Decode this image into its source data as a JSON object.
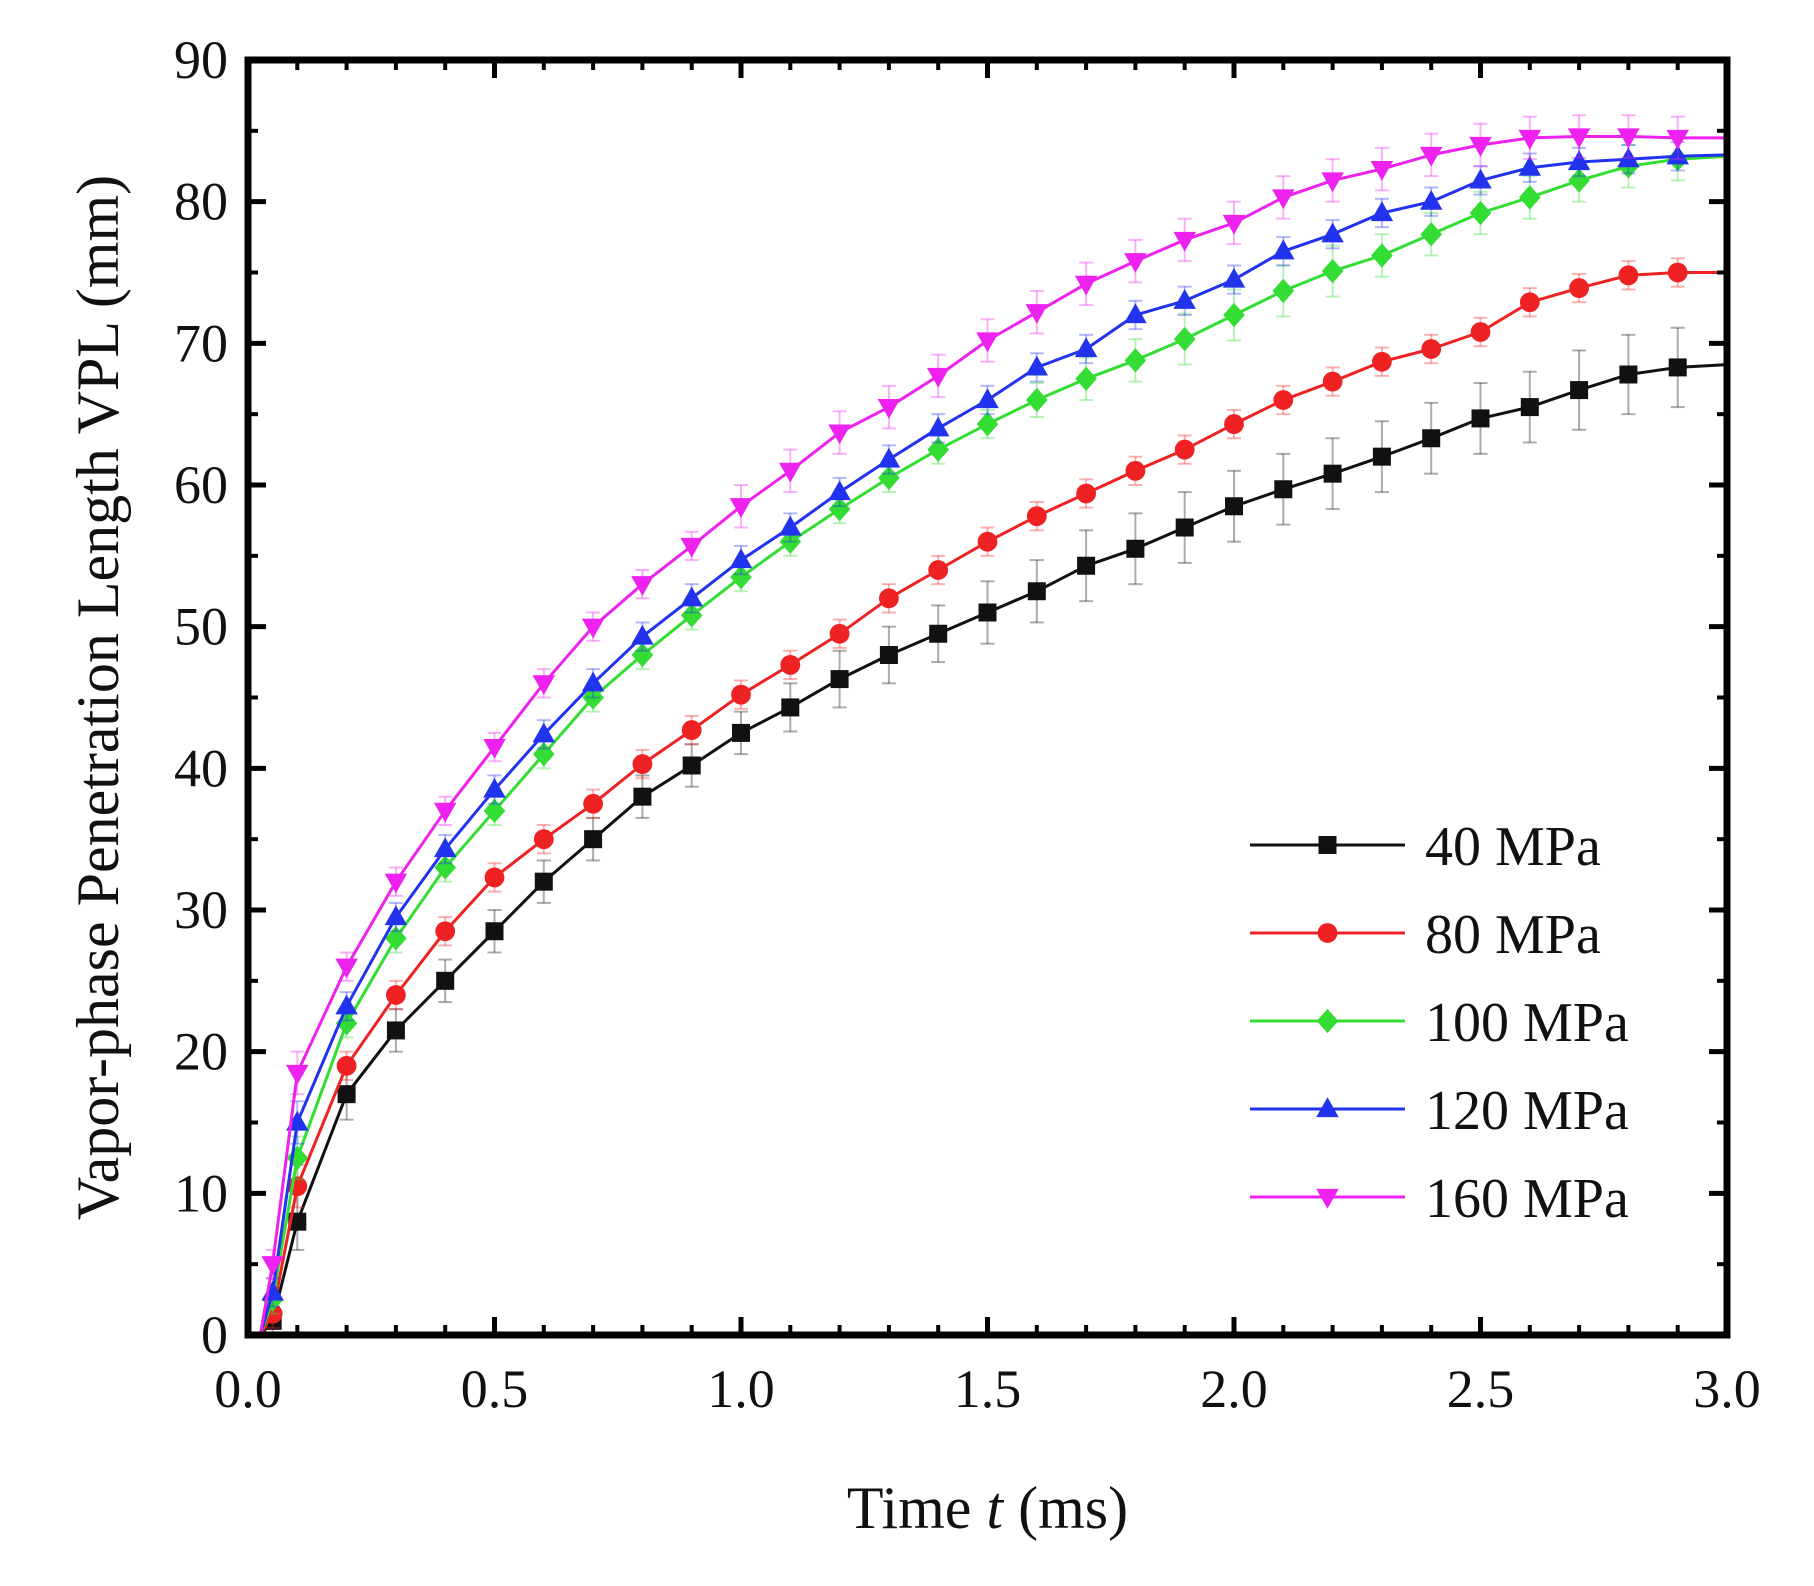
{
  "chart_data": {
    "type": "line",
    "title": "",
    "xlabel_parts": [
      "Time ",
      "t",
      " (ms)"
    ],
    "ylabel": "Vapor-phase Penetration Length VPL (mm)",
    "xlim": [
      0.0,
      3.0
    ],
    "ylim": [
      0,
      90
    ],
    "xticks": [
      0.0,
      0.5,
      1.0,
      1.5,
      2.0,
      2.5,
      3.0
    ],
    "xtick_labels": [
      "0.0",
      "0.5",
      "1.0",
      "1.5",
      "2.0",
      "2.5",
      "3.0"
    ],
    "yticks": [
      0,
      10,
      20,
      30,
      40,
      50,
      60,
      70,
      80,
      90
    ],
    "ytick_labels": [
      "0",
      "10",
      "20",
      "30",
      "40",
      "50",
      "60",
      "70",
      "80",
      "90"
    ],
    "grid": false,
    "legend_position": "lower-right",
    "x": [
      0.025,
      0.05,
      0.1,
      0.2,
      0.3,
      0.4,
      0.5,
      0.6,
      0.7,
      0.8,
      0.9,
      1.0,
      1.1,
      1.2,
      1.3,
      1.4,
      1.5,
      1.6,
      1.7,
      1.8,
      1.9,
      2.0,
      2.1,
      2.2,
      2.3,
      2.4,
      2.5,
      2.6,
      2.7,
      2.8,
      2.9,
      3.0
    ],
    "series": [
      {
        "name": "40 MPa",
        "color": "#111111",
        "marker": "square",
        "values": [
          0,
          1,
          8,
          17,
          21.5,
          25,
          28.5,
          32,
          35,
          38,
          40.2,
          42.5,
          44.3,
          46.3,
          48,
          49.5,
          51,
          52.5,
          54.3,
          55.5,
          57,
          58.5,
          59.7,
          60.8,
          62,
          63.3,
          64.7,
          65.5,
          66.7,
          67.8,
          68.3,
          68.5
        ],
        "errors": [
          0,
          1,
          2,
          1.8,
          1.5,
          1.5,
          1.5,
          1.5,
          1.5,
          1.5,
          1.5,
          1.5,
          1.7,
          2,
          2,
          2,
          2.2,
          2.2,
          2.5,
          2.5,
          2.5,
          2.5,
          2.5,
          2.5,
          2.5,
          2.5,
          2.5,
          2.5,
          2.8,
          2.8,
          2.8,
          0
        ]
      },
      {
        "name": "80 MPa",
        "color": "#ee2222",
        "marker": "circle",
        "values": [
          0,
          1.5,
          10.5,
          19,
          24,
          28.5,
          32.3,
          35,
          37.5,
          40.3,
          42.7,
          45.2,
          47.3,
          49.5,
          52,
          54,
          56,
          57.8,
          59.4,
          61,
          62.5,
          64.3,
          66,
          67.3,
          68.7,
          69.6,
          70.8,
          72.9,
          73.9,
          74.8,
          75,
          75
        ],
        "errors": [
          0,
          1,
          1.5,
          1,
          1,
          1,
          1,
          1,
          1,
          1,
          1,
          1,
          1,
          1,
          1,
          1,
          1,
          1,
          1,
          1,
          1,
          1,
          1,
          1,
          1,
          1,
          1,
          1,
          1,
          1,
          1,
          0
        ]
      },
      {
        "name": "100 MPa",
        "color": "#33dd33",
        "marker": "diamond",
        "values": [
          0,
          2.5,
          12.5,
          22,
          28,
          33,
          37,
          41,
          45,
          48,
          50.8,
          53.5,
          56,
          58.3,
          60.5,
          62.5,
          64.3,
          66,
          67.5,
          68.8,
          70.3,
          72,
          73.7,
          75.1,
          76.2,
          77.7,
          79.2,
          80.3,
          81.5,
          82.5,
          83,
          83.2
        ],
        "errors": [
          0,
          1,
          1.5,
          1,
          1,
          1,
          1,
          1,
          1,
          1,
          1,
          1,
          1,
          1,
          1,
          1,
          1,
          1.2,
          1.5,
          1.5,
          1.8,
          1.8,
          1.8,
          1.8,
          1.5,
          1.5,
          1.5,
          1.5,
          1.5,
          1.5,
          1.5,
          0
        ]
      },
      {
        "name": "120 MPa",
        "color": "#2233ee",
        "marker": "triangle-up",
        "values": [
          0,
          3,
          15,
          23.2,
          29.5,
          34.3,
          38.5,
          42.4,
          46,
          49.3,
          52,
          54.7,
          57,
          59.5,
          61.8,
          64,
          66,
          68.3,
          69.6,
          72,
          73,
          74.5,
          76.5,
          77.7,
          79.2,
          80,
          81.5,
          82.4,
          82.8,
          83,
          83.2,
          83.3
        ],
        "errors": [
          0,
          1,
          1.5,
          1,
          1,
          1,
          1,
          1,
          1,
          1,
          1,
          1,
          1,
          1,
          1,
          1,
          1,
          1,
          1,
          1,
          1,
          1,
          1,
          1,
          1,
          1,
          1,
          1,
          1,
          1,
          1,
          0
        ]
      },
      {
        "name": "160 MPa",
        "color": "#ee22ee",
        "marker": "triangle-down",
        "values": [
          0,
          5,
          18.5,
          26,
          32,
          37,
          41.5,
          46,
          50,
          53,
          55.7,
          58.5,
          61,
          63.7,
          65.5,
          67.7,
          70.2,
          72.2,
          74.2,
          75.8,
          77.3,
          78.5,
          80.3,
          81.5,
          82.3,
          83.3,
          84,
          84.5,
          84.6,
          84.6,
          84.5,
          84.5
        ],
        "errors": [
          0,
          1,
          1.5,
          1,
          1,
          1,
          1,
          1,
          1,
          1,
          1,
          1.5,
          1.5,
          1.5,
          1.5,
          1.5,
          1.5,
          1.5,
          1.5,
          1.5,
          1.5,
          1.5,
          1.5,
          1.5,
          1.5,
          1.5,
          1.5,
          1.5,
          1.5,
          1.5,
          1.5,
          0
        ]
      }
    ]
  }
}
